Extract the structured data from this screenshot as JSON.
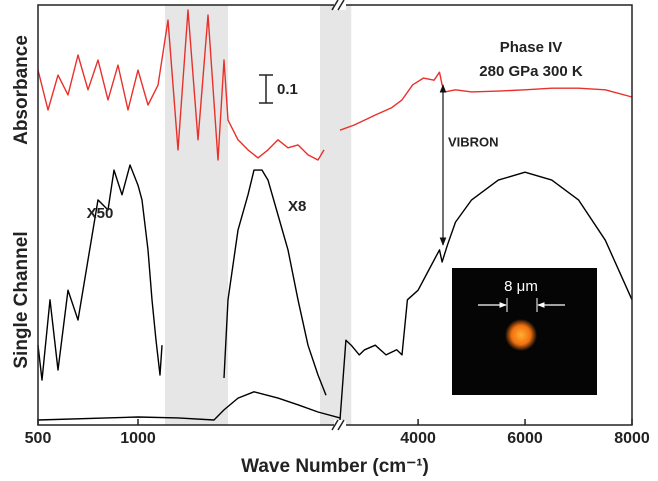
{
  "chart_data": {
    "type": "line",
    "x_label": "Wave Number (cm⁻¹)",
    "y_labels": [
      "Absorbance",
      "Single Channel"
    ],
    "ylim": [
      0,
      100
    ],
    "segments": [
      {
        "xlim": [
          500,
          2010
        ],
        "xticks": [
          500,
          1000
        ]
      },
      {
        "xlim": [
          2540,
          8000
        ],
        "xticks": [
          4000,
          6000,
          8000
        ]
      }
    ],
    "shaded_regions": [
      {
        "segment": 0,
        "range": [
          1135,
          1450
        ]
      },
      {
        "segment": 0,
        "range": [
          1910,
          2010
        ]
      },
      {
        "segment": 1,
        "range": [
          2540,
          2750
        ]
      }
    ],
    "annotations": [
      "Phase IV",
      "280 GPa  300 K",
      "0.1",
      "VIBRON",
      "X50",
      "X8"
    ],
    "inset_label": "8 μm",
    "series": [
      {
        "color": "#e8312a",
        "segment": 0,
        "x": [
          500,
          550,
          600,
          650,
          700,
          750,
          800,
          850,
          900,
          950,
          1000,
          1050,
          1100,
          1150,
          1200,
          1250,
          1300,
          1350,
          1400,
          1430,
          1450,
          1500,
          1550,
          1600,
          1650,
          1700,
          1750,
          1800,
          1850,
          1900,
          1930
        ],
        "values": [
          84.5,
          75.0,
          83.3,
          78.6,
          88.1,
          79.8,
          86.9,
          77.4,
          85.7,
          75.0,
          84.5,
          76.2,
          80.9,
          96.4,
          65.5,
          98.8,
          67.9,
          97.6,
          63.1,
          86.9,
          72.6,
          67.9,
          65.5,
          63.6,
          65.5,
          67.9,
          66.0,
          66.7,
          64.3,
          63.1,
          65.5
        ]
      },
      {
        "color": "#e8312a",
        "segment": 1,
        "x": [
          2540,
          2800,
          3000,
          3200,
          3500,
          3700,
          3900,
          4100,
          4300,
          4400,
          4450,
          4500,
          4700,
          5000,
          5500,
          6000,
          6500,
          7000,
          7500,
          8000
        ],
        "values": [
          70.2,
          71.4,
          72.6,
          73.8,
          75.5,
          77.4,
          81.0,
          82.6,
          82.1,
          84.0,
          81.0,
          79.3,
          79.8,
          79.3,
          79.5,
          79.8,
          80.2,
          80.2,
          79.8,
          78.1
        ]
      },
      {
        "color": "#000000",
        "segment": 0,
        "x": [
          500,
          520,
          560,
          600,
          650,
          700,
          750,
          800,
          850,
          880,
          920,
          960,
          1000,
          1020,
          1050,
          1070,
          1090,
          1110,
          1120
        ],
        "values": [
          19.0,
          10.7,
          29.8,
          13.1,
          32.1,
          25.0,
          39.3,
          53.6,
          51.2,
          60.7,
          54.8,
          61.9,
          57.1,
          53.6,
          41.7,
          29.8,
          20.2,
          11.9,
          19.0
        ]
      },
      {
        "color": "#000000",
        "segment": 0,
        "x": [
          1430,
          1450,
          1500,
          1550,
          1580,
          1620,
          1650,
          1700,
          1750,
          1800,
          1850,
          1900,
          1940
        ],
        "values": [
          11.2,
          29.8,
          46.4,
          54.8,
          60.7,
          60.7,
          58.3,
          50.0,
          41.7,
          29.8,
          19.0,
          11.9,
          7.1
        ]
      },
      {
        "color": "#000000",
        "segment": 0,
        "x": [
          500,
          1000,
          1200,
          1380,
          1430,
          1500,
          1580,
          1700,
          1800,
          1900,
          2010
        ],
        "values": [
          1.2,
          1.9,
          1.7,
          1.2,
          3.6,
          6.4,
          7.9,
          6.4,
          4.8,
          3.1,
          1.7
        ]
      },
      {
        "color": "#000000",
        "segment": 1,
        "x": [
          2540,
          2650,
          2750,
          2900,
          3000,
          3200,
          3400,
          3600,
          3700,
          3800,
          4000,
          4200,
          4350,
          4400,
          4450,
          4550,
          4700,
          5000,
          5500,
          6000,
          6500,
          7000,
          7500,
          8000
        ],
        "values": [
          1.2,
          20.2,
          19.0,
          16.7,
          17.9,
          19.0,
          16.7,
          17.9,
          16.7,
          29.8,
          32.1,
          36.9,
          40.5,
          41.7,
          38.8,
          42.9,
          48.3,
          53.6,
          58.3,
          60.2,
          58.3,
          53.6,
          44.0,
          29.8
        ]
      }
    ]
  }
}
